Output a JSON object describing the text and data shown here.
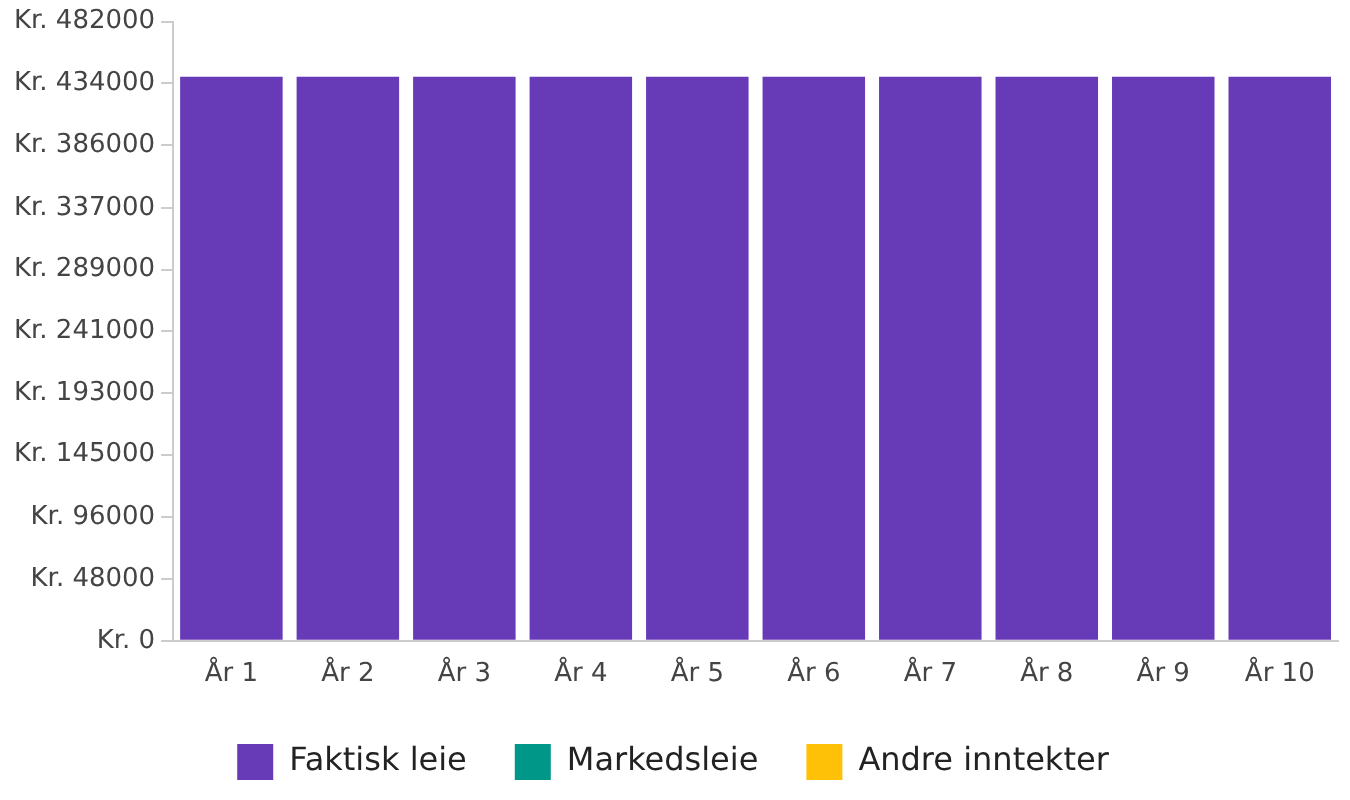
{
  "chart_data": {
    "type": "bar",
    "stacked": true,
    "categories": [
      "År 1",
      "År 2",
      "År 3",
      "År 4",
      "År 5",
      "År 6",
      "År 7",
      "År 8",
      "År 9",
      "År 10"
    ],
    "series": [
      {
        "name": "Faktisk leie",
        "color": "#673ab7",
        "values": [
          439000,
          439000,
          439000,
          439000,
          439000,
          439000,
          439000,
          439000,
          439000,
          439000
        ]
      },
      {
        "name": "Markedsleie",
        "color": "#009688",
        "values": [
          0,
          0,
          0,
          0,
          0,
          0,
          0,
          0,
          0,
          0
        ]
      },
      {
        "name": "Andre inntekter",
        "color": "#ffc107",
        "values": [
          0,
          0,
          0,
          0,
          0,
          0,
          0,
          0,
          0,
          0
        ]
      }
    ],
    "ylim": [
      0,
      482000
    ],
    "yticks": [
      {
        "value": 0,
        "label": "Kr. 0"
      },
      {
        "value": 48000,
        "label": "Kr. 48000"
      },
      {
        "value": 96000,
        "label": "Kr. 96000"
      },
      {
        "value": 145000,
        "label": "Kr. 145000"
      },
      {
        "value": 193000,
        "label": "Kr. 193000"
      },
      {
        "value": 241000,
        "label": "Kr. 241000"
      },
      {
        "value": 289000,
        "label": "Kr. 289000"
      },
      {
        "value": 337000,
        "label": "Kr. 337000"
      },
      {
        "value": 386000,
        "label": "Kr. 386000"
      },
      {
        "value": 434000,
        "label": "Kr. 434000"
      },
      {
        "value": 482000,
        "label": "Kr. 482000"
      }
    ],
    "grid": false,
    "legend": "bottom"
  }
}
